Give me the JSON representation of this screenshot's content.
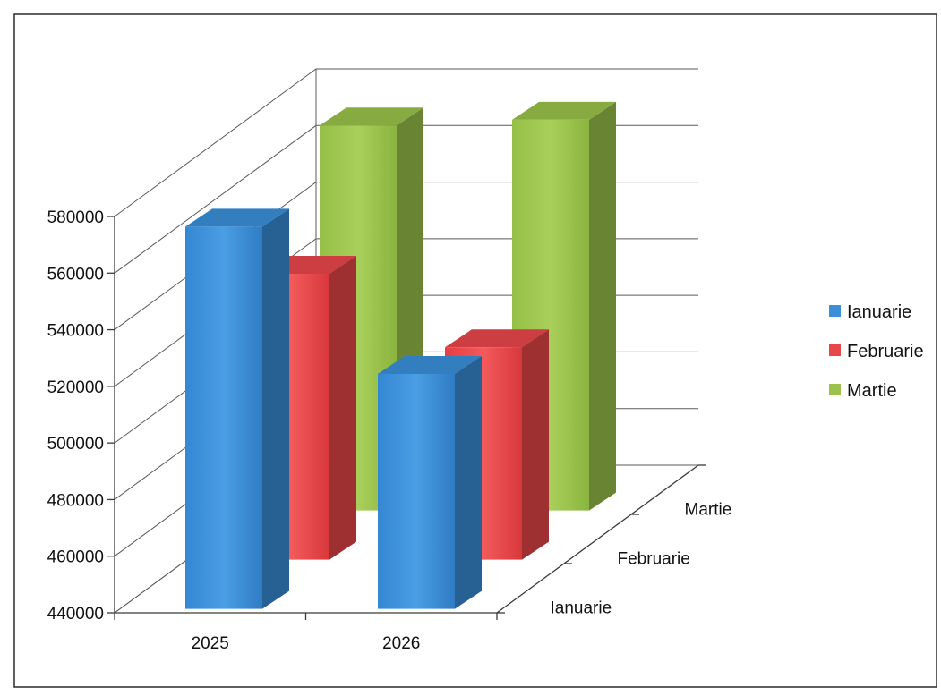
{
  "chart_data": {
    "type": "bar",
    "categories": [
      "2025",
      "2026"
    ],
    "depth_categories": [
      "Ianuarie",
      "Februarie",
      "Martie"
    ],
    "series": [
      {
        "name": "Ianuarie",
        "values": [
          575000,
          523000
        ]
      },
      {
        "name": "Februarie",
        "values": [
          541000,
          515000
        ]
      },
      {
        "name": "Martie",
        "values": [
          576000,
          578000
        ]
      }
    ],
    "yticks": [
      "440000",
      "460000",
      "480000",
      "500000",
      "520000",
      "540000",
      "560000",
      "580000"
    ],
    "ylim": [
      440000,
      580000
    ],
    "title": "",
    "xlabel": "",
    "ylabel": "",
    "legend_position": "right",
    "grid": true,
    "colors": {
      "Ianuarie": "#3a8fd8",
      "Februarie": "#e8474a",
      "Martie": "#9bc24a"
    }
  }
}
